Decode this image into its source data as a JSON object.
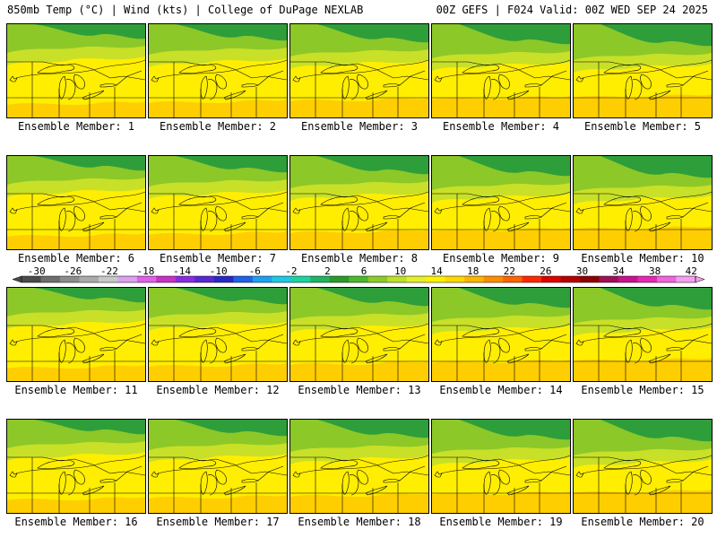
{
  "header": {
    "left": "850mb Temp (°C) | Wind (kts) | College of DuPage NEXLAB",
    "right": "00Z GEFS | F024 Valid: 00Z WED SEP 24 2025"
  },
  "members": [
    {
      "label": "Ensemble Member: 1",
      "icon": "temperature-map"
    },
    {
      "label": "Ensemble Member: 2",
      "icon": "temperature-map"
    },
    {
      "label": "Ensemble Member: 3",
      "icon": "temperature-map"
    },
    {
      "label": "Ensemble Member: 4",
      "icon": "temperature-map"
    },
    {
      "label": "Ensemble Member: 5",
      "icon": "temperature-map"
    },
    {
      "label": "Ensemble Member: 6",
      "icon": "temperature-map"
    },
    {
      "label": "Ensemble Member: 7",
      "icon": "temperature-map"
    },
    {
      "label": "Ensemble Member: 8",
      "icon": "temperature-map"
    },
    {
      "label": "Ensemble Member: 9",
      "icon": "temperature-map"
    },
    {
      "label": "Ensemble Member: 10",
      "icon": "temperature-map"
    },
    {
      "label": "Ensemble Member: 11",
      "icon": "temperature-map"
    },
    {
      "label": "Ensemble Member: 12",
      "icon": "temperature-map"
    },
    {
      "label": "Ensemble Member: 13",
      "icon": "temperature-map"
    },
    {
      "label": "Ensemble Member: 14",
      "icon": "temperature-map"
    },
    {
      "label": "Ensemble Member: 15",
      "icon": "temperature-map"
    },
    {
      "label": "Ensemble Member: 16",
      "icon": "temperature-map"
    },
    {
      "label": "Ensemble Member: 17",
      "icon": "temperature-map"
    },
    {
      "label": "Ensemble Member: 18",
      "icon": "temperature-map"
    },
    {
      "label": "Ensemble Member: 19",
      "icon": "temperature-map"
    },
    {
      "label": "Ensemble Member: 20",
      "icon": "temperature-map"
    }
  ],
  "colorbar": {
    "ticks": [
      "-30",
      "-26",
      "-22",
      "-18",
      "-14",
      "-10",
      "-6",
      "-2",
      "2",
      "6",
      "10",
      "14",
      "18",
      "22",
      "26",
      "30",
      "34",
      "38",
      "42"
    ],
    "colors": [
      "#4a4a4a",
      "#6e6e6e",
      "#8c8c8c",
      "#aaaaaa",
      "#c8c8c8",
      "#dca0f0",
      "#e060e8",
      "#c830c8",
      "#8a2be2",
      "#5a28d0",
      "#2828c8",
      "#1e64e6",
      "#1ea0f0",
      "#1ec8e6",
      "#1ed2a0",
      "#1eb464",
      "#2a9a2a",
      "#4cb82a",
      "#8ccc28",
      "#bee028",
      "#e6f028",
      "#fff200",
      "#ffd700",
      "#ffb400",
      "#ff8c00",
      "#ff6400",
      "#ff2800",
      "#dc0000",
      "#b40000",
      "#8c0000",
      "#a0105a",
      "#c8148c",
      "#e628b4",
      "#f064dc",
      "#f5a0ef"
    ],
    "icon": "temperature-colorbar"
  },
  "palette": {
    "north_green": "#2e9e3a",
    "mid_green": "#8cc828",
    "yellow_green": "#c8e028",
    "yellow": "#ffee00",
    "orange": "#ffc000",
    "line_color": "#000000"
  }
}
